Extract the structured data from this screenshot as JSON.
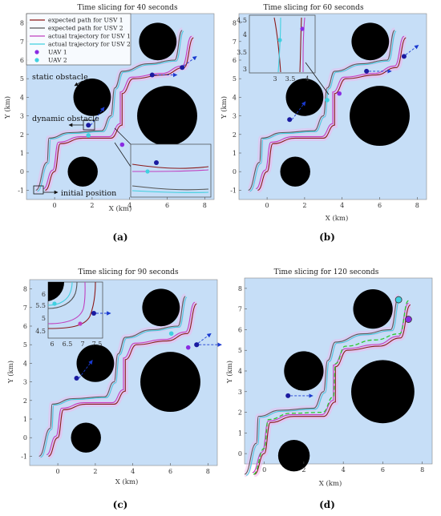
{
  "chart_data": [
    {
      "type": "scatter",
      "panel_label": "(a)",
      "title": "Time slicing for 40 seconds",
      "xlabel": "X (km)",
      "ylabel": "Y (km)",
      "xlim": [
        -1.5,
        8.5
      ],
      "ylim": [
        -1.5,
        8.5
      ],
      "xticks": [
        0,
        2,
        4,
        6,
        8
      ],
      "yticks": [
        -1,
        0,
        1,
        2,
        3,
        4,
        5,
        6,
        7,
        8
      ],
      "legend": {
        "position": "top-left",
        "entries": [
          {
            "label": "expected path for USV 1",
            "color": "#8b1a1a",
            "marker": "line"
          },
          {
            "label": "expected path for USV 2",
            "color": "#555555",
            "marker": "line"
          },
          {
            "label": "actual trajectory for USV 1",
            "color": "#c040c0",
            "marker": "line"
          },
          {
            "label": "actual trajectory for USV 2",
            "color": "#40d0e0",
            "marker": "line"
          },
          {
            "label": "UAV 1",
            "color": "#8a2be2",
            "marker": "dot"
          },
          {
            "label": "UAV 2",
            "color": "#40d0e0",
            "marker": "dot"
          }
        ]
      },
      "annotations": [
        {
          "text": "static obstacle"
        },
        {
          "text": "dynamic obstacle"
        },
        {
          "text": "initial position"
        }
      ],
      "obstacles": [
        {
          "x": 1.5,
          "y": 0,
          "r": 0.8
        },
        {
          "x": 2.0,
          "y": 4.0,
          "r": 1.0
        },
        {
          "x": 5.5,
          "y": 7.0,
          "r": 1.0
        },
        {
          "x": 6.0,
          "y": 3.0,
          "r": 1.6
        }
      ],
      "dynamic_obstacles": [
        {
          "x": 5.2,
          "y": 5.2
        },
        {
          "x": 1.8,
          "y": 2.5
        }
      ],
      "uav": [
        {
          "name": "UAV 1",
          "x": 3.6,
          "y": 1.45
        },
        {
          "name": "UAV 2",
          "x": 1.8,
          "y": 1.95
        }
      ],
      "rescue_target": {
        "x": 6.8,
        "y": 5.6
      }
    },
    {
      "type": "scatter",
      "panel_label": "(b)",
      "title": "Time slicing for 60 seconds",
      "xlabel": "X (km)",
      "ylabel": "Y (km)",
      "xlim": [
        -1.5,
        8.5
      ],
      "ylim": [
        -1.5,
        8.5
      ],
      "xticks": [
        0,
        2,
        4,
        6,
        8
      ],
      "yticks": [
        -1,
        0,
        1,
        2,
        3,
        4,
        5,
        6,
        7,
        8
      ],
      "inset": {
        "xticks": [
          "3",
          "3.5",
          "4"
        ],
        "yticks": [
          "3",
          "3.5",
          "4",
          "4.5"
        ]
      },
      "obstacles": [
        {
          "x": 1.5,
          "y": 0,
          "r": 0.8
        },
        {
          "x": 2.0,
          "y": 4.0,
          "r": 1.0
        },
        {
          "x": 5.5,
          "y": 7.0,
          "r": 1.0
        },
        {
          "x": 6.0,
          "y": 3.0,
          "r": 1.6
        }
      ],
      "dynamic_obstacles": [
        {
          "x": 5.3,
          "y": 5.4
        },
        {
          "x": 1.2,
          "y": 2.8
        }
      ],
      "uav": [
        {
          "name": "UAV 1",
          "x": 3.85,
          "y": 4.2
        },
        {
          "name": "UAV 2",
          "x": 3.2,
          "y": 3.85
        }
      ],
      "rescue_target": {
        "x": 7.3,
        "y": 6.2
      }
    },
    {
      "type": "scatter",
      "panel_label": "(c)",
      "title": "Time slicing for 90 seconds",
      "xlabel": "X (km)",
      "ylabel": "Y (km)",
      "xlim": [
        -1.5,
        8.5
      ],
      "ylim": [
        -1.5,
        8.5
      ],
      "xticks": [
        0,
        2,
        4,
        6,
        8
      ],
      "yticks": [
        -1,
        0,
        1,
        2,
        3,
        4,
        5,
        6,
        7,
        8
      ],
      "inset": {
        "xticks": [
          "6",
          "6.5",
          "7",
          "7.5"
        ],
        "yticks": [
          "4.5",
          "5",
          "5.5",
          "6"
        ]
      },
      "obstacles": [
        {
          "x": 1.5,
          "y": 0,
          "r": 0.8
        },
        {
          "x": 2.0,
          "y": 4.0,
          "r": 1.0
        },
        {
          "x": 5.5,
          "y": 7.0,
          "r": 1.0
        },
        {
          "x": 6.0,
          "y": 3.0,
          "r": 1.6
        }
      ],
      "dynamic_obstacles": [
        {
          "x": 7.4,
          "y": 5.0
        },
        {
          "x": 1.0,
          "y": 3.2
        }
      ],
      "uav": [
        {
          "name": "UAV 1",
          "x": 6.95,
          "y": 4.85
        },
        {
          "name": "UAV 2",
          "x": 6.05,
          "y": 5.6
        }
      ],
      "rescue_target": {
        "x": 7.4,
        "y": 5.0
      }
    },
    {
      "type": "scatter",
      "panel_label": "(d)",
      "title": "Time slicing for 120 seconds",
      "xlabel": "X (km)",
      "ylabel": "Y (km)",
      "xlim": [
        -1,
        8.5
      ],
      "ylim": [
        -0.5,
        8.5
      ],
      "xticks": [
        0,
        2,
        4,
        6,
        8
      ],
      "yticks": [
        0,
        1,
        2,
        3,
        4,
        5,
        6,
        7,
        8
      ],
      "obstacles": [
        {
          "x": 1.5,
          "y": -0.1,
          "r": 0.8
        },
        {
          "x": 2.0,
          "y": 4.0,
          "r": 1.0
        },
        {
          "x": 5.5,
          "y": 7.0,
          "r": 1.0
        },
        {
          "x": 6.0,
          "y": 3.0,
          "r": 1.6
        }
      ],
      "dynamic_obstacles": [
        {
          "x": 1.2,
          "y": 2.8
        }
      ],
      "uav": [
        {
          "name": "UAV 1",
          "x": 7.3,
          "y": 6.5
        },
        {
          "name": "UAV 2",
          "x": 6.8,
          "y": 7.45
        }
      ]
    }
  ],
  "colors": {
    "background": "#c6def7",
    "obstacle": "#000000",
    "expected_usv1": "#8b1a1a",
    "expected_usv2": "#5a5a5a",
    "actual_usv1": "#c040c0",
    "actual_usv2": "#40d0e0",
    "uav1": "#8a2be2",
    "uav2": "#40d0e0",
    "dynamic": "#1a1aa0",
    "arrow": "#1a3ad0",
    "green_path": "#2ec82e"
  }
}
